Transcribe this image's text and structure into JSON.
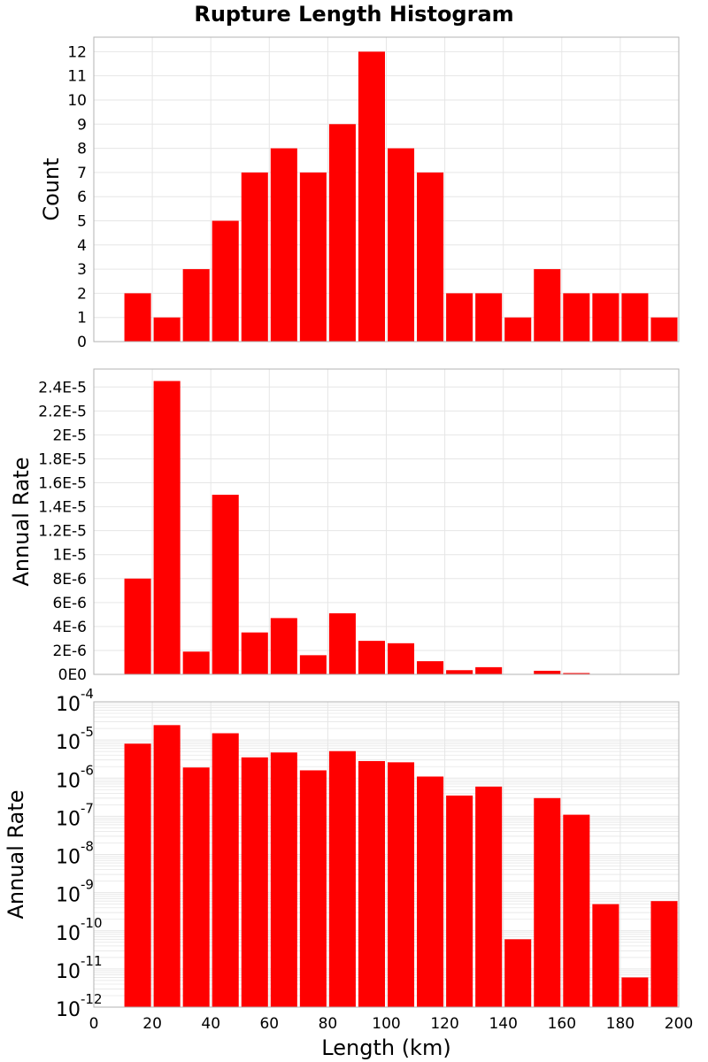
{
  "title": "Rupture Length Histogram",
  "colors": {
    "bar": "#ff0000",
    "grid": "#e6e6e6",
    "frame": "#b3b3b3",
    "background": "#ffffff"
  },
  "chart_data": [
    {
      "type": "bar",
      "ylabel": "Count",
      "x_bin_starts": [
        10,
        20,
        30,
        40,
        50,
        60,
        70,
        80,
        90,
        100,
        110,
        120,
        130,
        140,
        150,
        160,
        170,
        180,
        190
      ],
      "bin_width": 10,
      "values": [
        2,
        1,
        3,
        5,
        7,
        8,
        7,
        9,
        12,
        8,
        7,
        2,
        2,
        1,
        3,
        2,
        2,
        2,
        1
      ],
      "xlim": [
        0,
        200
      ],
      "ylim": [
        0,
        12.6
      ],
      "yticks": [
        "0",
        "1",
        "2",
        "3",
        "4",
        "5",
        "6",
        "7",
        "8",
        "9",
        "10",
        "11",
        "12"
      ],
      "grid": true
    },
    {
      "type": "bar",
      "ylabel": "Annual Rate",
      "x_bin_starts": [
        10,
        20,
        30,
        40,
        50,
        60,
        70,
        80,
        90,
        100,
        110,
        120,
        130,
        140,
        150,
        160,
        170,
        180,
        190
      ],
      "bin_width": 10,
      "values": [
        8e-06,
        2.45e-05,
        1.9e-06,
        1.5e-05,
        3.5e-06,
        4.7e-06,
        1.6e-06,
        5.1e-06,
        2.8e-06,
        2.6e-06,
        1.1e-06,
        3.5e-07,
        6e-07,
        6e-11,
        3e-07,
        1.1e-07,
        5e-10,
        6e-12,
        6e-10
      ],
      "xlim": [
        0,
        200
      ],
      "ylim": [
        0,
        2.55e-05
      ],
      "yticks": [
        "0E0",
        "2E-6",
        "4E-6",
        "6E-6",
        "8E-6",
        "1E-5",
        "1.2E-5",
        "1.4E-5",
        "1.6E-5",
        "1.8E-5",
        "2E-5",
        "2.2E-5",
        "2.4E-5"
      ],
      "grid": true
    },
    {
      "type": "bar",
      "ylabel": "Annual Rate",
      "xlabel": "Length (km)",
      "yscale": "log",
      "x_bin_starts": [
        10,
        20,
        30,
        40,
        50,
        60,
        70,
        80,
        90,
        100,
        110,
        120,
        130,
        140,
        150,
        160,
        170,
        180,
        190
      ],
      "bin_width": 10,
      "values": [
        8e-06,
        2.45e-05,
        1.9e-06,
        1.5e-05,
        3.5e-06,
        4.7e-06,
        1.6e-06,
        5.1e-06,
        2.8e-06,
        2.6e-06,
        1.1e-06,
        3.5e-07,
        6e-07,
        6e-11,
        3e-07,
        1.1e-07,
        5e-10,
        6e-12,
        6e-10
      ],
      "xlim": [
        0,
        200
      ],
      "ylim": [
        1e-12,
        0.0001
      ],
      "yticks": [
        {
          "base": "10",
          "exp": "-12"
        },
        {
          "base": "10",
          "exp": "-11"
        },
        {
          "base": "10",
          "exp": "-10"
        },
        {
          "base": "10",
          "exp": "-9"
        },
        {
          "base": "10",
          "exp": "-8"
        },
        {
          "base": "10",
          "exp": "-7"
        },
        {
          "base": "10",
          "exp": "-6"
        },
        {
          "base": "10",
          "exp": "-5"
        },
        {
          "base": "10",
          "exp": "-4"
        }
      ],
      "xticks": [
        "0",
        "20",
        "40",
        "60",
        "80",
        "100",
        "120",
        "140",
        "160",
        "180",
        "200"
      ],
      "grid": true
    }
  ]
}
